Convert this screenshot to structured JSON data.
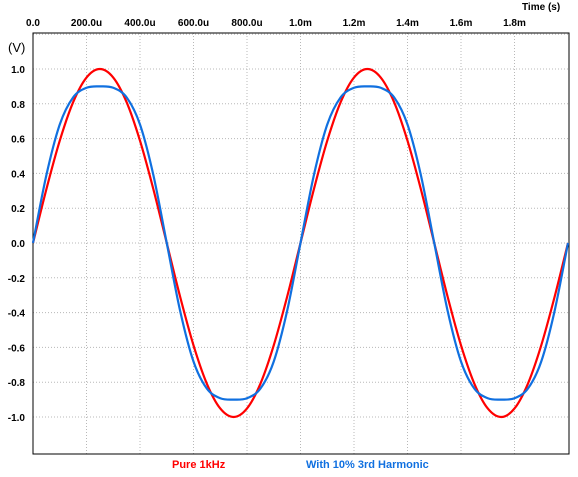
{
  "chart_data": {
    "type": "line",
    "title": "",
    "xlabel": "Time  (s)",
    "ylabel": "(V)",
    "xlim": [
      0,
      0.002
    ],
    "ylim": [
      -1.2,
      1.2
    ],
    "x_ticks": [
      0,
      0.0002,
      0.0004,
      0.0006,
      0.0008,
      0.001,
      0.0012,
      0.0014,
      0.0016,
      0.0018
    ],
    "x_tick_labels": [
      "0.0",
      "200.0u",
      "400.0u",
      "600.0u",
      "800.0u",
      "1.0m",
      "1.2m",
      "1.4m",
      "1.6m",
      "1.8m"
    ],
    "y_ticks": [
      1.0,
      0.8,
      0.6,
      0.4,
      0.2,
      0.0,
      -0.2,
      -0.4,
      -0.6,
      -0.8,
      -1.0
    ],
    "y_tick_labels": [
      "1.0",
      "0.8",
      "0.6",
      "0.4",
      "0.2",
      "0.0",
      "-0.2",
      "-0.4",
      "-0.6",
      "-0.8",
      "-1.0"
    ],
    "grid": true,
    "legend_position": "bottom",
    "series": [
      {
        "name": "Pure 1kHz",
        "color": "#ff0000",
        "x": [
          0,
          5e-05,
          0.0001,
          0.00015,
          0.0002,
          0.00025,
          0.0003,
          0.00035,
          0.0004,
          0.00045,
          0.0005,
          0.00055,
          0.0006,
          0.00065,
          0.0007,
          0.00075,
          0.0008,
          0.00085,
          0.0009,
          0.00095,
          0.001,
          0.00105,
          0.0011,
          0.00115,
          0.0012,
          0.00125,
          0.0013,
          0.00135,
          0.0014,
          0.00145,
          0.0015,
          0.00155,
          0.0016,
          0.00165,
          0.0017,
          0.00175,
          0.0018,
          0.00185,
          0.0019,
          0.00195,
          0.002
        ],
        "y": [
          0,
          0.309,
          0.588,
          0.809,
          0.951,
          1.0,
          0.951,
          0.809,
          0.588,
          0.309,
          0,
          -0.309,
          -0.588,
          -0.809,
          -0.951,
          -1.0,
          -0.951,
          -0.809,
          -0.588,
          -0.309,
          0,
          0.309,
          0.588,
          0.809,
          0.951,
          1.0,
          0.951,
          0.809,
          0.588,
          0.309,
          0,
          -0.309,
          -0.588,
          -0.809,
          -0.951,
          -1.0,
          -0.951,
          -0.809,
          -0.588,
          -0.309,
          0
        ]
      },
      {
        "name": "With 10% 3rd Harmonic",
        "color": "#1070e0",
        "x": [
          0,
          5e-05,
          0.0001,
          0.00015,
          0.0002,
          0.00025,
          0.0003,
          0.00035,
          0.0004,
          0.00045,
          0.0005,
          0.00055,
          0.0006,
          0.00065,
          0.0007,
          0.00075,
          0.0008,
          0.00085,
          0.0009,
          0.00095,
          0.001,
          0.00105,
          0.0011,
          0.00115,
          0.0012,
          0.00125,
          0.0013,
          0.00135,
          0.0014,
          0.00145,
          0.0015,
          0.00155,
          0.0016,
          0.00165,
          0.0017,
          0.00175,
          0.0018,
          0.00185,
          0.0019,
          0.00195,
          0.002
        ],
        "y": [
          0,
          0.39,
          0.681,
          0.837,
          0.892,
          0.9,
          0.892,
          0.837,
          0.681,
          0.39,
          0,
          -0.39,
          -0.681,
          -0.837,
          -0.892,
          -0.9,
          -0.892,
          -0.837,
          -0.681,
          -0.39,
          0,
          0.39,
          0.681,
          0.837,
          0.892,
          0.9,
          0.892,
          0.837,
          0.681,
          0.39,
          0,
          -0.39,
          -0.681,
          -0.837,
          -0.892,
          -0.9,
          -0.892,
          -0.837,
          -0.681,
          -0.39,
          0
        ]
      }
    ]
  }
}
